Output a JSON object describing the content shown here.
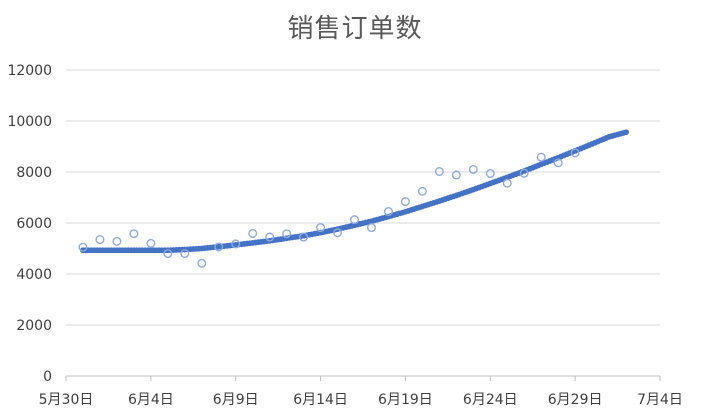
{
  "chart_data": {
    "type": "scatter",
    "title": "销售订单数",
    "xlabel": "",
    "ylabel": "",
    "x_range": [
      "2022-05-30",
      "2022-07-04"
    ],
    "ylim": [
      0,
      12000
    ],
    "y_ticks": [
      0,
      2000,
      4000,
      6000,
      8000,
      10000,
      12000
    ],
    "y_tick_labels": [
      "0",
      "2000",
      "4000",
      "6000",
      "8000",
      "10000",
      "12000"
    ],
    "x_ticks": [
      "2022-05-30",
      "2022-06-04",
      "2022-06-09",
      "2022-06-14",
      "2022-06-19",
      "2022-06-24",
      "2022-06-29",
      "2022-07-04"
    ],
    "x_tick_labels": [
      "5月30日",
      "6月4日",
      "6月9日",
      "6月14日",
      "6月19日",
      "6月24日",
      "6月29日",
      "7月4日"
    ],
    "grid": true,
    "legend": "none",
    "colors": {
      "observed": "#8faadc",
      "fitted": "#4472c4",
      "grid": "#d9d9d9",
      "axis": "#bfbfbf"
    },
    "series": [
      {
        "style": "hollow-markers",
        "points": [
          {
            "x": "2022-05-31",
            "y": 5050
          },
          {
            "x": "2022-06-01",
            "y": 5350
          },
          {
            "x": "2022-06-02",
            "y": 5280
          },
          {
            "x": "2022-06-03",
            "y": 5580
          },
          {
            "x": "2022-06-04",
            "y": 5200
          },
          {
            "x": "2022-06-05",
            "y": 4800
          },
          {
            "x": "2022-06-06",
            "y": 4800
          },
          {
            "x": "2022-06-07",
            "y": 4420
          },
          {
            "x": "2022-06-08",
            "y": 5060
          },
          {
            "x": "2022-06-09",
            "y": 5180
          },
          {
            "x": "2022-06-10",
            "y": 5590
          },
          {
            "x": "2022-06-11",
            "y": 5450
          },
          {
            "x": "2022-06-12",
            "y": 5580
          },
          {
            "x": "2022-06-13",
            "y": 5450
          },
          {
            "x": "2022-06-14",
            "y": 5820
          },
          {
            "x": "2022-06-15",
            "y": 5620
          },
          {
            "x": "2022-06-16",
            "y": 6130
          },
          {
            "x": "2022-06-17",
            "y": 5820
          },
          {
            "x": "2022-06-18",
            "y": 6450
          },
          {
            "x": "2022-06-19",
            "y": 6840
          },
          {
            "x": "2022-06-20",
            "y": 7240
          },
          {
            "x": "2022-06-21",
            "y": 8020
          },
          {
            "x": "2022-06-22",
            "y": 7880
          },
          {
            "x": "2022-06-23",
            "y": 8100
          },
          {
            "x": "2022-06-24",
            "y": 7940
          },
          {
            "x": "2022-06-25",
            "y": 7560
          },
          {
            "x": "2022-06-26",
            "y": 7950
          },
          {
            "x": "2022-06-27",
            "y": 8580
          },
          {
            "x": "2022-06-28",
            "y": 8360
          },
          {
            "x": "2022-06-29",
            "y": 8750
          }
        ]
      },
      {
        "style": "dense-solid-markers",
        "points": [
          {
            "x": "2022-05-31",
            "y": 4930
          },
          {
            "x": "2022-06-01",
            "y": 4930
          },
          {
            "x": "2022-06-02",
            "y": 4930
          },
          {
            "x": "2022-06-03",
            "y": 4930
          },
          {
            "x": "2022-06-04",
            "y": 4930
          },
          {
            "x": "2022-06-05",
            "y": 4930
          },
          {
            "x": "2022-06-06",
            "y": 4960
          },
          {
            "x": "2022-06-07",
            "y": 5000
          },
          {
            "x": "2022-06-08",
            "y": 5070
          },
          {
            "x": "2022-06-09",
            "y": 5140
          },
          {
            "x": "2022-06-10",
            "y": 5220
          },
          {
            "x": "2022-06-11",
            "y": 5300
          },
          {
            "x": "2022-06-12",
            "y": 5400
          },
          {
            "x": "2022-06-13",
            "y": 5500
          },
          {
            "x": "2022-06-14",
            "y": 5620
          },
          {
            "x": "2022-06-15",
            "y": 5760
          },
          {
            "x": "2022-06-16",
            "y": 5910
          },
          {
            "x": "2022-06-17",
            "y": 6070
          },
          {
            "x": "2022-06-18",
            "y": 6250
          },
          {
            "x": "2022-06-19",
            "y": 6440
          },
          {
            "x": "2022-06-20",
            "y": 6650
          },
          {
            "x": "2022-06-21",
            "y": 6860
          },
          {
            "x": "2022-06-22",
            "y": 7080
          },
          {
            "x": "2022-06-23",
            "y": 7310
          },
          {
            "x": "2022-06-24",
            "y": 7550
          },
          {
            "x": "2022-06-25",
            "y": 7790
          },
          {
            "x": "2022-06-26",
            "y": 8040
          },
          {
            "x": "2022-06-27",
            "y": 8300
          },
          {
            "x": "2022-06-28",
            "y": 8560
          },
          {
            "x": "2022-06-29",
            "y": 8830
          },
          {
            "x": "2022-06-30",
            "y": 9100
          },
          {
            "x": "2022-07-01",
            "y": 9380
          },
          {
            "x": "2022-07-02",
            "y": 9560
          }
        ]
      }
    ]
  }
}
